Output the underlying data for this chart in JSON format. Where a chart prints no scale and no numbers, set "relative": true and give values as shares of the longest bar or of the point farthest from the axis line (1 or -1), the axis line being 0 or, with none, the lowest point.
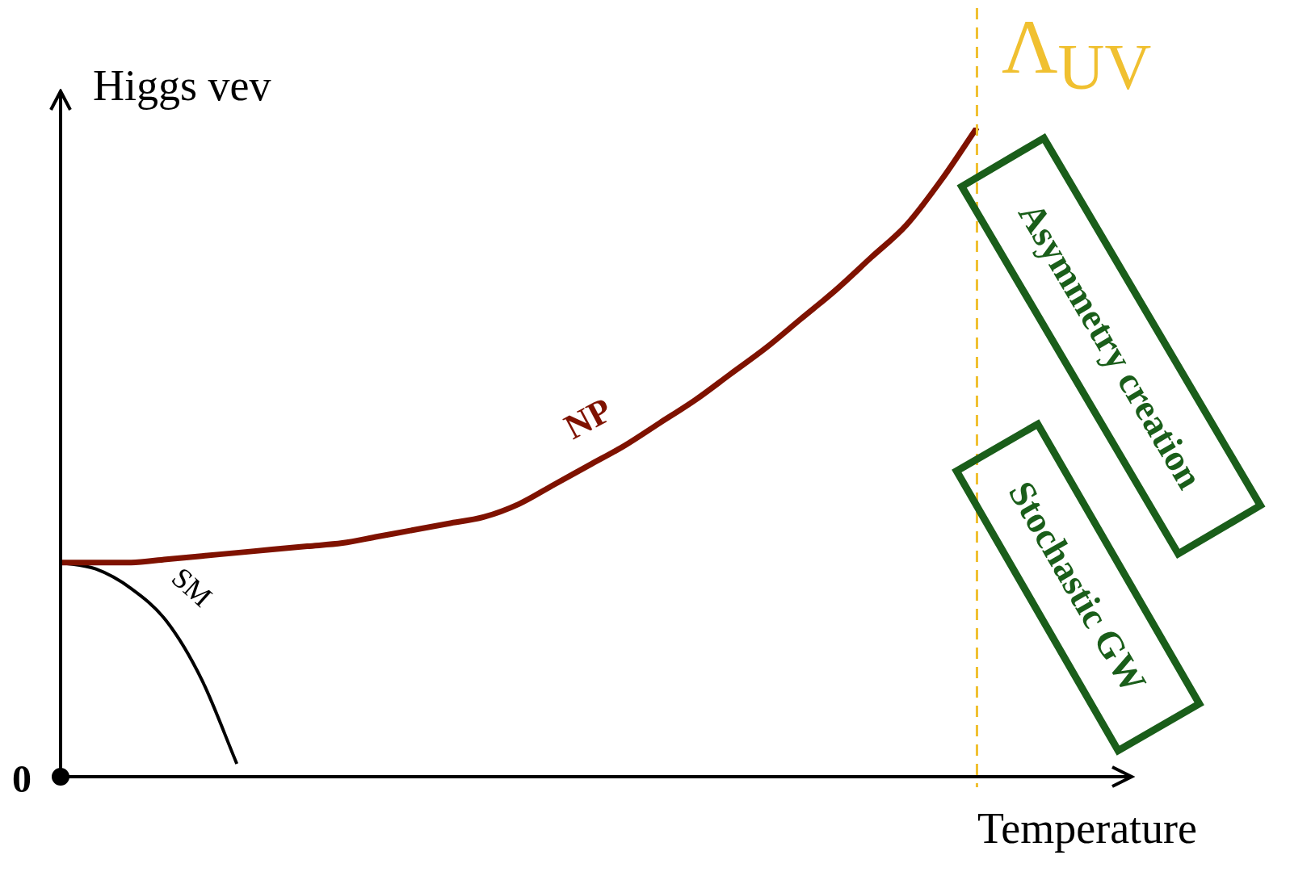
{
  "chart_data": {
    "type": "line",
    "relative": true,
    "xlabel": "Temperature",
    "ylabel": "Higgs vev",
    "categories": [
      null,
      null,
      null,
      null,
      null,
      null,
      null,
      null,
      null,
      null,
      null,
      null,
      null,
      null,
      null,
      null,
      null,
      null,
      null,
      null,
      null,
      null,
      null,
      null,
      null,
      null,
      null,
      null,
      null,
      null,
      null
    ],
    "series": [
      {
        "name": "NP",
        "color": "#7f1200",
        "values": [
          0.33,
          0.33,
          0.33,
          0.335,
          0.34,
          0.345,
          0.35,
          0.355,
          0.36,
          0.37,
          0.38,
          0.39,
          0.4,
          0.42,
          0.45,
          0.48,
          0.51,
          0.545,
          0.58,
          0.62,
          0.66,
          0.705,
          0.75,
          0.8,
          0.85,
          0.92,
          1.0,
          null,
          null,
          null,
          null
        ]
      },
      {
        "name": "SM",
        "color": "#000000",
        "values": [
          0.33,
          0.32,
          0.29,
          0.24,
          0.15,
          0.02,
          null,
          null,
          null,
          null,
          null,
          null,
          null,
          null,
          null,
          null,
          null,
          null,
          null,
          null,
          null,
          null,
          null,
          null,
          null,
          null,
          null,
          null,
          null,
          null,
          null
        ]
      }
    ],
    "annotations": [
      "0",
      "Asymmetry creation",
      "Stochastic GW",
      "Λ$_{UV}$"
    ],
    "legend": false,
    "marker": "none",
    "line_style": "solid"
  }
}
